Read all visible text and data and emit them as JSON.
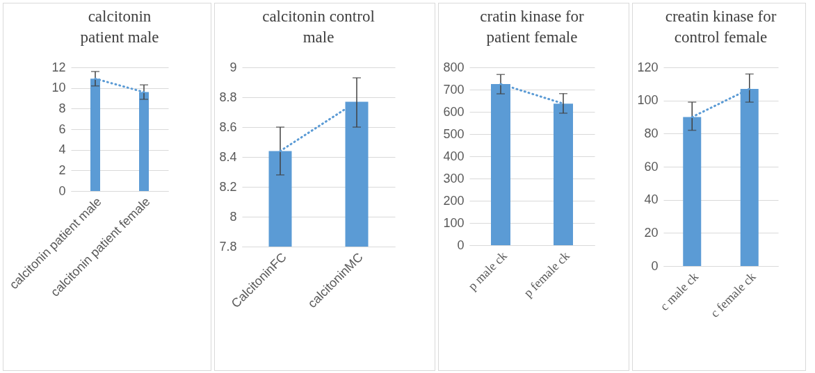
{
  "chart_data": [
    {
      "type": "bar",
      "title": "calcitonin patient male",
      "categories": [
        "calcitonin patient male",
        "calcitonin patient female"
      ],
      "ylim": [
        0,
        12
      ],
      "yticks": [
        0,
        2,
        4,
        6,
        8,
        10,
        12
      ],
      "grid": "y",
      "series": [
        {
          "type": "bar",
          "color": "#5b9bd5",
          "values": [
            10.9,
            9.6
          ],
          "errors": [
            [
              10.2,
              11.6
            ],
            [
              8.9,
              10.3
            ]
          ]
        },
        {
          "type": "line",
          "color": "#5b9bd5",
          "values": [
            10.9,
            9.6
          ],
          "line_style": "dotted",
          "marker": "none"
        }
      ]
    },
    {
      "type": "bar",
      "title": "calcitonin control male",
      "categories": [
        "CalcitoninFC",
        "calcitoninMC"
      ],
      "ylim": [
        7.8,
        9
      ],
      "yticks": [
        7.8,
        8,
        8.2,
        8.4,
        8.6,
        8.8,
        9
      ],
      "grid": "y",
      "series": [
        {
          "type": "bar",
          "color": "#5b9bd5",
          "values": [
            8.44,
            8.77
          ],
          "errors": [
            [
              8.28,
              8.6
            ],
            [
              8.6,
              8.93
            ]
          ]
        },
        {
          "type": "line",
          "color": "#5b9bd5",
          "values": [
            8.44,
            8.77
          ],
          "line_style": "dotted",
          "marker": "none"
        }
      ]
    },
    {
      "type": "bar",
      "title": "cratin kinase for patient female",
      "categories": [
        "p male ck",
        "p female  ck"
      ],
      "ylim": [
        0,
        800
      ],
      "yticks": [
        0,
        100,
        200,
        300,
        400,
        500,
        600,
        700,
        800
      ],
      "grid": "y",
      "series": [
        {
          "type": "bar",
          "color": "#5b9bd5",
          "values": [
            725,
            637
          ],
          "errors": [
            [
              681,
              768
            ],
            [
              594,
              682
            ]
          ]
        },
        {
          "type": "line",
          "color": "#5b9bd5",
          "values": [
            725,
            637
          ],
          "line_style": "dotted",
          "marker": "none"
        }
      ]
    },
    {
      "type": "bar",
      "title": "creatin kinase for control female",
      "categories": [
        "c male ck",
        "c female ck"
      ],
      "ylim": [
        0,
        120
      ],
      "yticks": [
        0,
        20,
        40,
        60,
        80,
        100,
        120
      ],
      "grid": "y",
      "series": [
        {
          "type": "bar",
          "color": "#5b9bd5",
          "values": [
            90,
            107
          ],
          "errors": [
            [
              82,
              99
            ],
            [
              99,
              116
            ]
          ]
        },
        {
          "type": "line",
          "color": "#5b9bd5",
          "values": [
            90,
            107
          ],
          "line_style": "dotted",
          "marker": "none"
        }
      ]
    }
  ]
}
